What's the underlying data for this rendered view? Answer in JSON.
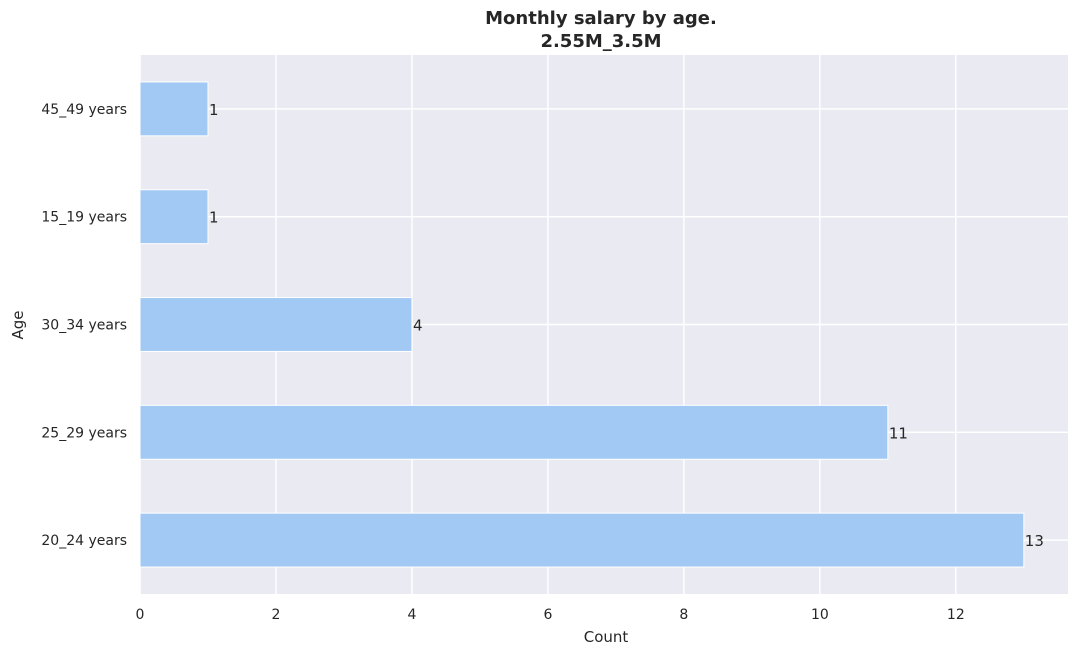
{
  "chart_data": {
    "type": "bar",
    "orientation": "horizontal",
    "title": "Monthly salary by age.",
    "subtitle": "2.55M_3.5M",
    "xlabel": "Count",
    "ylabel": "Age",
    "categories": [
      "20_24 years",
      "25_29 years",
      "30_34 years",
      "15_19 years",
      "45_49 years"
    ],
    "values": [
      13,
      11,
      4,
      1,
      1
    ],
    "data_labels": [
      "13",
      "11",
      "4",
      "1",
      "1"
    ],
    "xlim": [
      0,
      13.65
    ],
    "xticks": [
      0,
      2,
      4,
      6,
      8,
      10,
      12
    ],
    "xtick_labels": [
      "0",
      "2",
      "4",
      "6",
      "8",
      "10",
      "12"
    ],
    "grid": true,
    "colors": {
      "bar": "#a1c9f4",
      "plot_background": "#eaeaf2",
      "grid": "#ffffff"
    }
  }
}
